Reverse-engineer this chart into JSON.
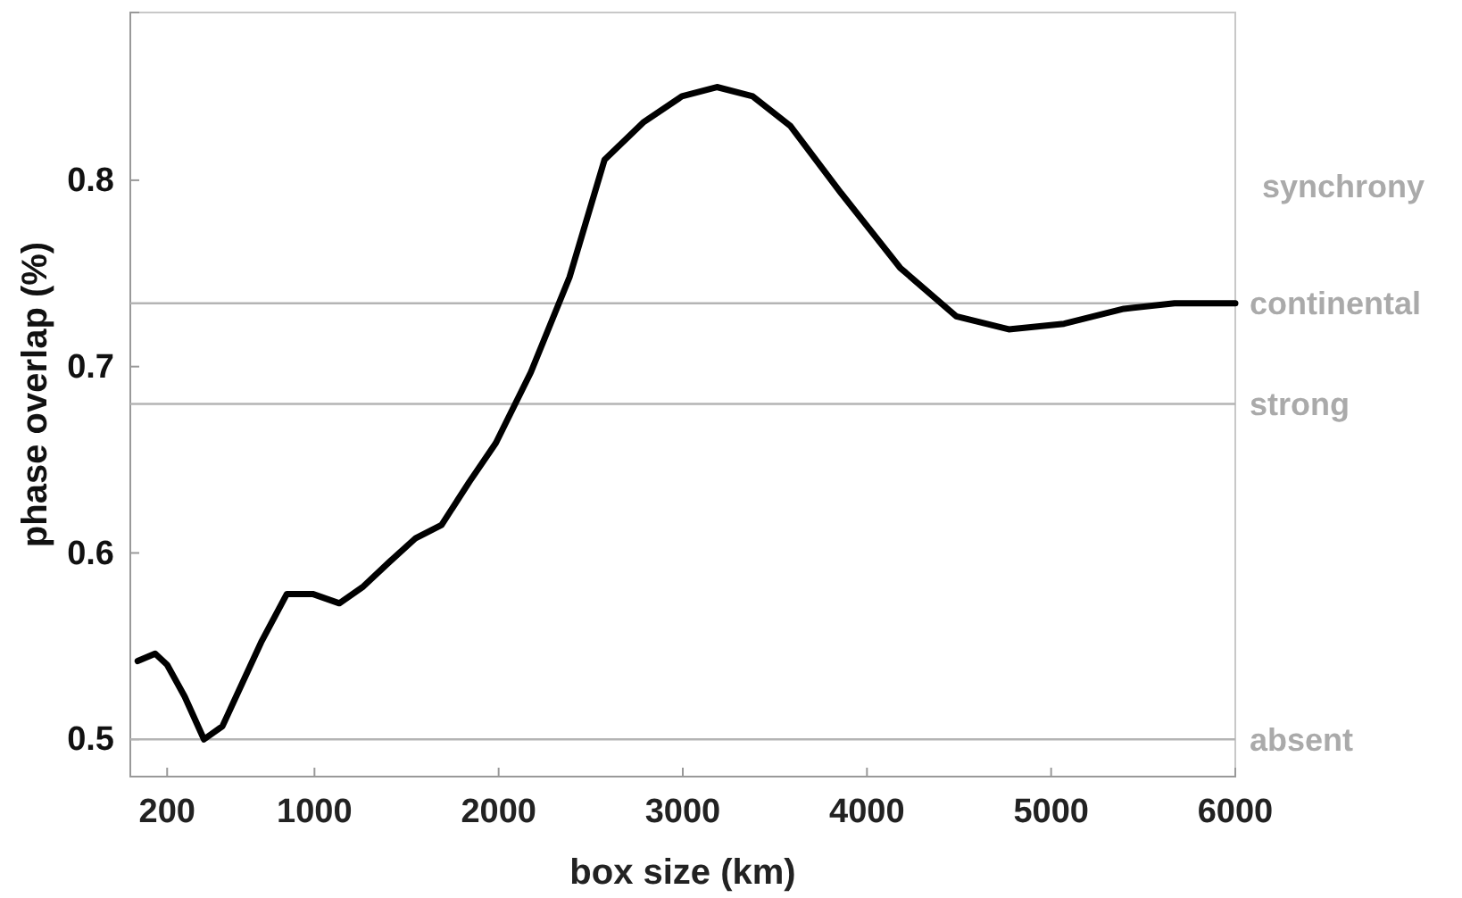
{
  "chart_data": {
    "type": "line",
    "xlabel": "box size (km)",
    "ylabel": "phase overlap (%)",
    "xlim": [
      0,
      6000
    ],
    "xticks": [
      200,
      1000,
      2000,
      3000,
      4000,
      5000,
      6000
    ],
    "ylim": [
      0.48,
      0.89
    ],
    "yticks": [
      0.5,
      0.6,
      0.7,
      0.8
    ],
    "series": [
      {
        "color": "#000000",
        "x": [
          40,
          135,
          200,
          295,
          400,
          500,
          710,
          850,
          990,
          1135,
          1265,
          1405,
          1550,
          1690,
          1840,
          1985,
          2175,
          2385,
          2575,
          2785,
          2995,
          3185,
          3380,
          3585,
          3860,
          4180,
          4485,
          4770,
          5070,
          5395,
          5670,
          6000
        ],
        "values": [
          0.542,
          0.546,
          0.54,
          0.523,
          0.5,
          0.507,
          0.552,
          0.578,
          0.578,
          0.573,
          0.582,
          0.595,
          0.608,
          0.615,
          0.638,
          0.659,
          0.697,
          0.748,
          0.811,
          0.831,
          0.845,
          0.85,
          0.845,
          0.829,
          0.793,
          0.753,
          0.727,
          0.72,
          0.723,
          0.731,
          0.734,
          0.734
        ]
      }
    ],
    "ref_lines": [
      {
        "axis": "y",
        "value": 0.734,
        "label": "continental",
        "color": "#b4b4b4"
      },
      {
        "axis": "y",
        "value": 0.68,
        "label": "strong",
        "color": "#b4b4b4"
      },
      {
        "axis": "y",
        "value": 0.5,
        "label": "absent",
        "color": "#b4b4b4"
      }
    ],
    "annotations": [
      "synchrony"
    ],
    "grid": false,
    "line_style": "solid",
    "marker": "none"
  }
}
